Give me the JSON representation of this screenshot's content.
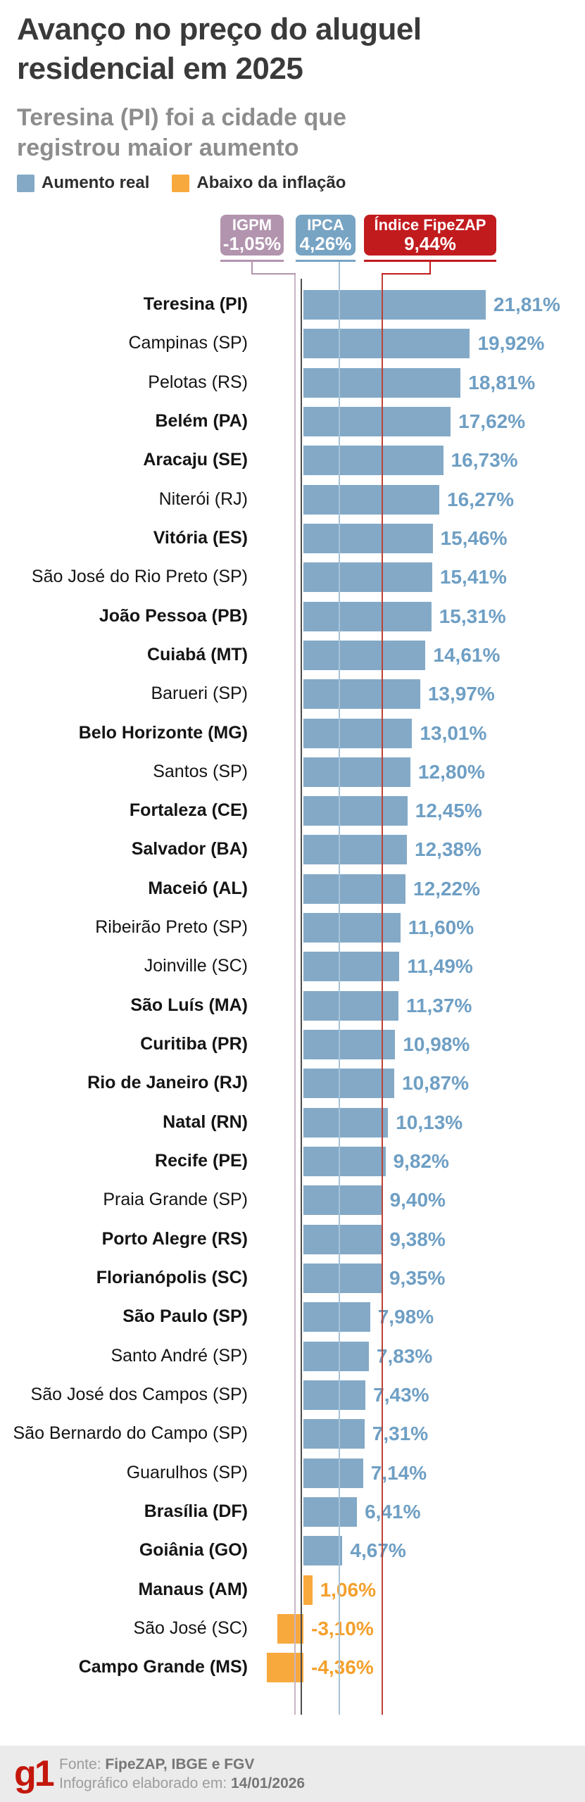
{
  "header": {
    "title_lines": [
      "Avanço no preço do aluguel",
      "residencial em 2025"
    ],
    "subtitle_lines": [
      "Teresina (PI) foi a cidade que",
      "registrou maior aumento"
    ]
  },
  "legend": {
    "items": [
      {
        "label": "Aumento real",
        "type": "real",
        "color": "#83a9c7"
      },
      {
        "label": "Abaixo da inflação",
        "type": "below",
        "color": "#f8a93d"
      }
    ]
  },
  "reference_markers": [
    {
      "id": "igpm",
      "name": "IGPM",
      "value": -1.05,
      "value_label": "-1,05%",
      "box_color": "#b294ae",
      "line_color": "#c9b5c5"
    },
    {
      "id": "ipca",
      "name": "IPCA",
      "value": 4.26,
      "value_label": "4,26%",
      "box_color": "#78a4c4",
      "line_color": "#a6c3d8"
    },
    {
      "id": "fipezap",
      "name": "Índice FipeZAP",
      "value": 9.44,
      "value_label": "9,44%",
      "box_color": "#c21b1e",
      "line_color": "#bb4338"
    }
  ],
  "chart_data": {
    "type": "bar",
    "orientation": "horizontal",
    "unit": "%",
    "xlim": [
      -5,
      23
    ],
    "axis_color": "#4c4c4c",
    "categories": [
      "Teresina (PI)",
      "Campinas (SP)",
      "Pelotas (RS)",
      "Belém (PA)",
      "Aracaju (SE)",
      "Niterói (RJ)",
      "Vitória (ES)",
      "São José do Rio Preto (SP)",
      "João Pessoa (PB)",
      "Cuiabá (MT)",
      "Barueri (SP)",
      "Belo Horizonte (MG)",
      "Santos (SP)",
      "Fortaleza (CE)",
      "Salvador (BA)",
      "Maceió (AL)",
      "Ribeirão Preto (SP)",
      "Joinville (SC)",
      "São Luís (MA)",
      "Curitiba (PR)",
      "Rio de Janeiro (RJ)",
      "Natal (RN)",
      "Recife (PE)",
      "Praia Grande (SP)",
      "Porto Alegre (RS)",
      "Florianópolis (SC)",
      "São Paulo (SP)",
      "Santo André (SP)",
      "São José dos Campos (SP)",
      "São Bernardo do Campo (SP)",
      "Guarulhos (SP)",
      "Brasília (DF)",
      "Goiânia (GO)",
      "Manaus (AM)",
      "São José (SC)",
      "Campo Grande (MS)"
    ],
    "values": [
      21.81,
      19.92,
      18.81,
      17.62,
      16.73,
      16.27,
      15.46,
      15.41,
      15.31,
      14.61,
      13.97,
      13.01,
      12.8,
      12.45,
      12.38,
      12.22,
      11.6,
      11.49,
      11.37,
      10.98,
      10.87,
      10.13,
      9.82,
      9.4,
      9.38,
      9.35,
      7.98,
      7.83,
      7.43,
      7.31,
      7.14,
      6.41,
      4.67,
      1.06,
      -3.1,
      -4.36
    ],
    "rows": [
      {
        "label": "Teresina (PI)",
        "value": 21.81,
        "value_label": "21,81%",
        "bold": true,
        "type": "real"
      },
      {
        "label": "Campinas (SP)",
        "value": 19.92,
        "value_label": "19,92%",
        "bold": false,
        "type": "real"
      },
      {
        "label": "Pelotas (RS)",
        "value": 18.81,
        "value_label": "18,81%",
        "bold": false,
        "type": "real"
      },
      {
        "label": "Belém (PA)",
        "value": 17.62,
        "value_label": "17,62%",
        "bold": true,
        "type": "real"
      },
      {
        "label": "Aracaju (SE)",
        "value": 16.73,
        "value_label": "16,73%",
        "bold": true,
        "type": "real"
      },
      {
        "label": "Niterói (RJ)",
        "value": 16.27,
        "value_label": "16,27%",
        "bold": false,
        "type": "real"
      },
      {
        "label": "Vitória (ES)",
        "value": 15.46,
        "value_label": "15,46%",
        "bold": true,
        "type": "real"
      },
      {
        "label": "São José do Rio Preto (SP)",
        "value": 15.41,
        "value_label": "15,41%",
        "bold": false,
        "type": "real"
      },
      {
        "label": "João Pessoa (PB)",
        "value": 15.31,
        "value_label": "15,31%",
        "bold": true,
        "type": "real"
      },
      {
        "label": "Cuiabá (MT)",
        "value": 14.61,
        "value_label": "14,61%",
        "bold": true,
        "type": "real"
      },
      {
        "label": "Barueri (SP)",
        "value": 13.97,
        "value_label": "13,97%",
        "bold": false,
        "type": "real"
      },
      {
        "label": "Belo Horizonte (MG)",
        "value": 13.01,
        "value_label": "13,01%",
        "bold": true,
        "type": "real"
      },
      {
        "label": "Santos (SP)",
        "value": 12.8,
        "value_label": "12,80%",
        "bold": false,
        "type": "real"
      },
      {
        "label": "Fortaleza (CE)",
        "value": 12.45,
        "value_label": "12,45%",
        "bold": true,
        "type": "real"
      },
      {
        "label": "Salvador (BA)",
        "value": 12.38,
        "value_label": "12,38%",
        "bold": true,
        "type": "real"
      },
      {
        "label": "Maceió (AL)",
        "value": 12.22,
        "value_label": "12,22%",
        "bold": true,
        "type": "real"
      },
      {
        "label": "Ribeirão Preto (SP)",
        "value": 11.6,
        "value_label": "11,60%",
        "bold": false,
        "type": "real"
      },
      {
        "label": "Joinville (SC)",
        "value": 11.49,
        "value_label": "11,49%",
        "bold": false,
        "type": "real"
      },
      {
        "label": "São Luís (MA)",
        "value": 11.37,
        "value_label": "11,37%",
        "bold": true,
        "type": "real"
      },
      {
        "label": "Curitiba (PR)",
        "value": 10.98,
        "value_label": "10,98%",
        "bold": true,
        "type": "real"
      },
      {
        "label": "Rio de Janeiro (RJ)",
        "value": 10.87,
        "value_label": "10,87%",
        "bold": true,
        "type": "real"
      },
      {
        "label": "Natal (RN)",
        "value": 10.13,
        "value_label": "10,13%",
        "bold": true,
        "type": "real"
      },
      {
        "label": "Recife (PE)",
        "value": 9.82,
        "value_label": "9,82%",
        "bold": true,
        "type": "real"
      },
      {
        "label": "Praia Grande (SP)",
        "value": 9.4,
        "value_label": "9,40%",
        "bold": false,
        "type": "real"
      },
      {
        "label": "Porto Alegre (RS)",
        "value": 9.38,
        "value_label": "9,38%",
        "bold": true,
        "type": "real"
      },
      {
        "label": "Florianópolis (SC)",
        "value": 9.35,
        "value_label": "9,35%",
        "bold": true,
        "type": "real"
      },
      {
        "label": "São Paulo (SP)",
        "value": 7.98,
        "value_label": "7,98%",
        "bold": true,
        "type": "real"
      },
      {
        "label": "Santo André (SP)",
        "value": 7.83,
        "value_label": "7,83%",
        "bold": false,
        "type": "real"
      },
      {
        "label": "São José dos Campos (SP)",
        "value": 7.43,
        "value_label": "7,43%",
        "bold": false,
        "type": "real"
      },
      {
        "label": "São Bernardo do Campo (SP)",
        "value": 7.31,
        "value_label": "7,31%",
        "bold": false,
        "type": "real"
      },
      {
        "label": "Guarulhos (SP)",
        "value": 7.14,
        "value_label": "7,14%",
        "bold": false,
        "type": "real"
      },
      {
        "label": "Brasília (DF)",
        "value": 6.41,
        "value_label": "6,41%",
        "bold": true,
        "type": "real"
      },
      {
        "label": "Goiânia (GO)",
        "value": 4.67,
        "value_label": "4,67%",
        "bold": true,
        "type": "real"
      },
      {
        "label": "Manaus (AM)",
        "value": 1.06,
        "value_label": "1,06%",
        "bold": true,
        "type": "below"
      },
      {
        "label": "São José (SC)",
        "value": -3.1,
        "value_label": "-3,10%",
        "bold": false,
        "type": "below"
      },
      {
        "label": "Campo Grande (MS)",
        "value": -4.36,
        "value_label": "-4,36%",
        "bold": true,
        "type": "below"
      }
    ]
  },
  "footer": {
    "logo": "g1",
    "logo_color": "#c4170c",
    "source_prefix": "Fonte:",
    "source": "FipeZAP, IBGE e FGV",
    "date_prefix": "Infográfico elaborado em:",
    "date": "14/01/2026"
  }
}
